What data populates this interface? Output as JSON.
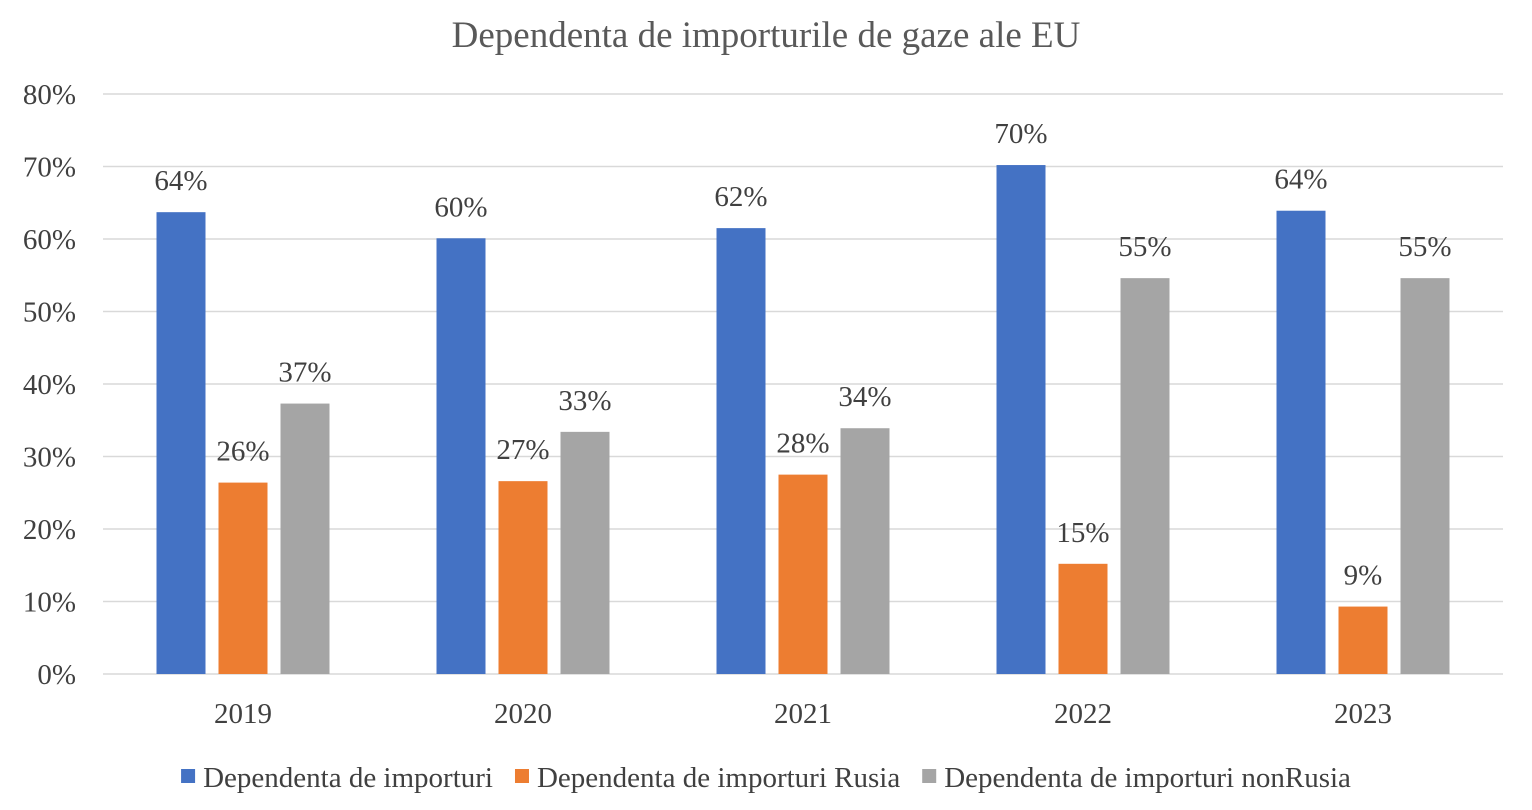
{
  "chart_data": {
    "type": "bar",
    "title": "Dependenta de importurile de gaze ale EU",
    "categories": [
      "2019",
      "2020",
      "2021",
      "2022",
      "2023"
    ],
    "series": [
      {
        "name": "Dependenta de importuri",
        "color": "#4472c4",
        "values": [
          63.7,
          60.1,
          61.5,
          70.2,
          63.9
        ],
        "labels": [
          "64%",
          "60%",
          "62%",
          "70%",
          "64%"
        ]
      },
      {
        "name": "Dependenta de importuri Rusia",
        "color": "#ed7d31",
        "values": [
          26.4,
          26.6,
          27.5,
          15.2,
          9.3
        ],
        "labels": [
          "26%",
          "27%",
          "28%",
          "15%",
          "9%"
        ]
      },
      {
        "name": "Dependenta de importuri nonRusia",
        "color": "#a5a5a5",
        "values": [
          37.3,
          33.4,
          33.9,
          54.6,
          54.6
        ],
        "labels": [
          "37%",
          "33%",
          "34%",
          "55%",
          "55%"
        ]
      }
    ],
    "ylim": [
      0,
      80
    ],
    "yticks": [
      "0%",
      "10%",
      "20%",
      "30%",
      "40%",
      "50%",
      "60%",
      "70%",
      "80%"
    ],
    "grid": true,
    "legend_position": "bottom",
    "xlabel": "",
    "ylabel": ""
  }
}
